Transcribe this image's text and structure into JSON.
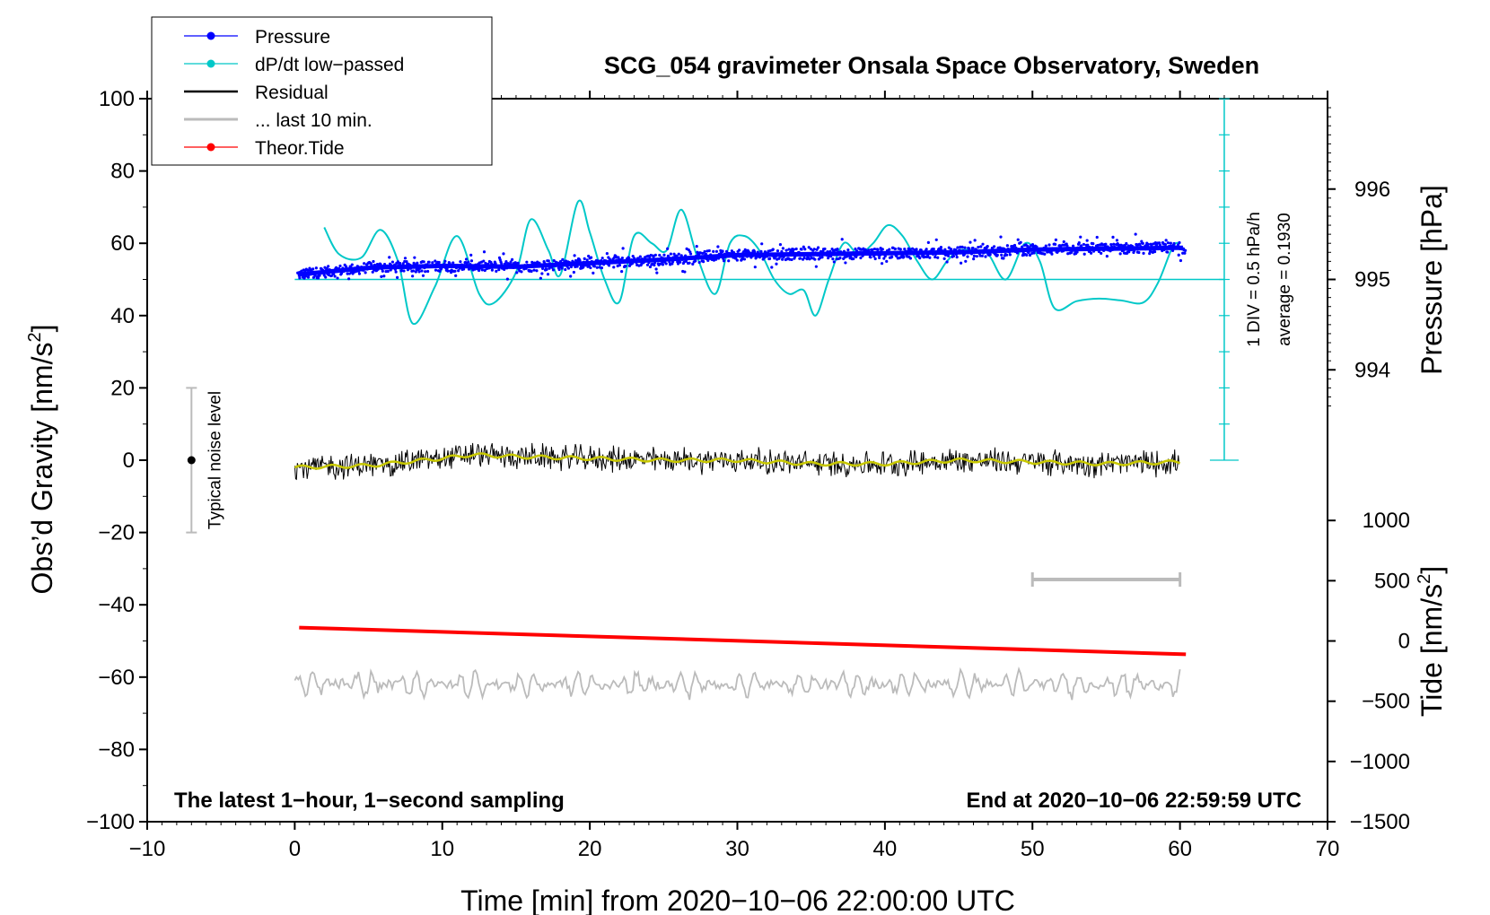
{
  "chart_data": {
    "type": "line",
    "title": "SCG_054 gravimeter Onsala Space Observatory, Sweden",
    "xlabel": "Time [min] from 2020−10−06 22:00:00 UTC",
    "ylabel": "Obs’d Gravity [nm/s",
    "ylabel_sup": "2",
    "ylabel_close": "]",
    "y2label": "Pressure [hPa]",
    "y3label": "Tide [nm/s",
    "y3label_sup": "2",
    "y3label_close": "]",
    "xlim": [
      -10,
      70
    ],
    "ylim": [
      -100,
      100
    ],
    "xticks": [
      -10,
      0,
      10,
      20,
      30,
      40,
      50,
      60,
      70
    ],
    "xtick_labels": [
      "−10",
      "0",
      "10",
      "20",
      "30",
      "40",
      "50",
      "60",
      "70"
    ],
    "yticks": [
      -100,
      -80,
      -60,
      -40,
      -20,
      0,
      20,
      40,
      60,
      80,
      100
    ],
    "ytick_labels": [
      "−100",
      "−80",
      "−60",
      "−40",
      "−20",
      "0",
      "20",
      "40",
      "60",
      "80",
      "100"
    ],
    "pressure_axis": {
      "ticks": [
        994,
        995,
        996
      ],
      "tick_labels": [
        "994",
        "995",
        "996"
      ],
      "gravity_at_995": 50,
      "gravity_per_hPa": 25
    },
    "tide_axis": {
      "ticks": [
        -1500,
        -1000,
        -500,
        0,
        500,
        1000
      ],
      "tick_labels": [
        "−1500",
        "−1000",
        "−500",
        "0",
        "500",
        "1000"
      ],
      "gravity_at_minus1500": -100,
      "gravity_per_1000": 33.33
    },
    "legend": {
      "position": "top-left",
      "entries": [
        {
          "label": "Pressure",
          "color": "#0000ff",
          "marker": true
        },
        {
          "label": "dP/dt low−passed",
          "color": "#00c8c8",
          "marker": true
        },
        {
          "label": "Residual",
          "color": "#000000",
          "marker": false
        },
        {
          "label": "... last 10 min.",
          "color": "#bbbbbb",
          "marker": false
        },
        {
          "label": "Theor.Tide",
          "color": "#ff0000",
          "marker": true
        }
      ]
    },
    "annotations": {
      "bottom_left": "The latest 1−hour, 1−second sampling",
      "bottom_right": "End at 2020−10−06 22:59:59 UTC",
      "noise_label": "Typical noise level",
      "noise_center": 0,
      "noise_halfwidth": 20,
      "noise_x": -7,
      "div_label": "1 DIV = 0.5 hPa/h",
      "average_label": "average = 0.1930",
      "dpdt_scale_x": 63,
      "dpdt_scale_range": [
        0,
        100
      ],
      "last10_bar": [
        50,
        60
      ],
      "last10_bar_y": -33
    },
    "series": [
      {
        "name": "Pressure",
        "color": "#0000ff",
        "x_range": [
          0.2,
          60.4
        ],
        "x": [
          0,
          5,
          10,
          15,
          20,
          25,
          30,
          35,
          40,
          45,
          50,
          55,
          60
        ],
        "hPa": [
          995.05,
          995.13,
          995.15,
          995.14,
          995.18,
          995.22,
          995.27,
          995.28,
          995.29,
          995.3,
          995.33,
          995.34,
          995.35
        ]
      },
      {
        "name": "dP/dt low−passed",
        "color": "#00c8c8",
        "x": [
          2.0,
          3.0,
          4.5,
          5.8,
          7.0,
          8.0,
          9.5,
          11.0,
          12.5,
          13.5,
          15.0,
          16.0,
          17.2,
          18.0,
          19.2,
          20.0,
          21.0,
          22.0,
          23.0,
          24.2,
          25.2,
          26.2,
          27.3,
          28.5,
          29.5,
          30.5,
          31.5,
          32.5,
          33.5,
          34.5,
          35.3,
          36.2,
          37.2,
          38.2,
          39.2,
          40.2,
          41.2,
          42.2,
          43.2,
          44.2,
          45.0,
          46.0,
          47.0,
          48.2,
          49.5,
          50.5,
          51.5,
          53.0,
          54.5,
          56.0,
          57.5,
          58.5,
          59.5,
          60.0
        ],
        "y": [
          64.4,
          57,
          56,
          63.7,
          55,
          37.8,
          48,
          62,
          46,
          43.5,
          52,
          66.6,
          58,
          51.3,
          71.5,
          63,
          50,
          43.8,
          62,
          60,
          58,
          69.3,
          56,
          46,
          60,
          62,
          58,
          50,
          46,
          47,
          40,
          50,
          60,
          57,
          60,
          65,
          62,
          55,
          50,
          55,
          58,
          58,
          57,
          50,
          60,
          55,
          42,
          44,
          44.7,
          44.2,
          43.6,
          49,
          59,
          60
        ]
      },
      {
        "name": "Residual",
        "color": "#000000",
        "x_range": [
          0,
          60
        ],
        "smooth_color": "#c8c800",
        "smooth_x": [
          0,
          5,
          10,
          12,
          15,
          20,
          25,
          30,
          35,
          40,
          45,
          50,
          55,
          60
        ],
        "smooth_y": [
          -2,
          -1.5,
          0.5,
          1.5,
          1.0,
          0.5,
          0,
          0,
          -1,
          -1,
          0,
          -0.5,
          -1,
          -0.5
        ],
        "noise_amplitude": 3
      },
      {
        "name": "... last 10 min.",
        "color": "#bbbbbb",
        "x_range": [
          0,
          60
        ],
        "center": -62,
        "amplitude": 3.5
      },
      {
        "name": "Theor.Tide",
        "color": "#ff0000",
        "x": [
          0.3,
          60.4
        ],
        "y": [
          -46.3,
          -53.7
        ]
      }
    ]
  }
}
